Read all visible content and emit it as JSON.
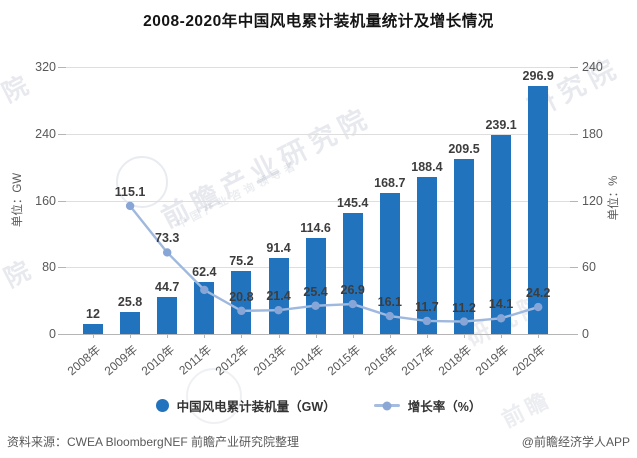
{
  "title": "2008-2020年中国风电累计装机量统计及增长情况",
  "chart_data": {
    "type": "bar",
    "categories": [
      "2008年",
      "2009年",
      "2010年",
      "2011年",
      "2012年",
      "2013年",
      "2014年",
      "2015年",
      "2016年",
      "2017年",
      "2018年",
      "2019年",
      "2020年"
    ],
    "series": [
      {
        "name": "中国风电累计装机量（GW）",
        "type": "bar",
        "axis": "left",
        "values": [
          12,
          25.8,
          44.7,
          62.4,
          75.2,
          91.4,
          114.6,
          145.4,
          168.7,
          188.4,
          209.5,
          239.1,
          296.9
        ],
        "labels": [
          "12",
          "25.8",
          "44.7",
          "62.4",
          "75.2",
          "91.4",
          "114.6",
          "145.4",
          "168.7",
          "188.4",
          "209.5",
          "239.1",
          "296.9"
        ]
      },
      {
        "name": "增长率（%）",
        "type": "line",
        "axis": "right",
        "values": [
          null,
          115.1,
          73.3,
          39.6,
          20.8,
          21.4,
          25.4,
          26.9,
          16.1,
          11.7,
          11.2,
          14.1,
          24.2
        ],
        "labels": [
          "",
          "115.1",
          "73.3",
          "",
          "20.8",
          "21.4",
          "25.4",
          "26.9",
          "16.1",
          "11.7",
          "11.2",
          "14.1",
          "24.2"
        ]
      }
    ],
    "left_axis": {
      "title": "单位：GW",
      "ticks": [
        0,
        80,
        160,
        240,
        320
      ],
      "ylim": [
        0,
        320
      ]
    },
    "right_axis": {
      "title": "单位：%",
      "ticks": [
        0,
        60,
        120,
        180,
        240
      ],
      "ylim": [
        0,
        240
      ]
    },
    "grid": true,
    "legend_position": "bottom"
  },
  "legend": {
    "bar_label": "中国风电累计装机量（GW）",
    "line_label": "增长率（%）"
  },
  "footer": {
    "source": "资料来源：CWEA BloombergNEF 前瞻产业研究院整理",
    "credit": "@前瞻经济学人APP"
  },
  "watermark": {
    "brand": "前瞻产业研究院",
    "tagline": "中国产业咨询领导者",
    "corner": "研究院",
    "partial": "院",
    "logo": "前瞻"
  },
  "colors": {
    "bar": "#2173bd",
    "line": "#9fb8de",
    "marker": "#87a5d6",
    "grid": "#dedede",
    "axis": "#b5b5b5",
    "data_label": "#3d3d3d",
    "tick_label": "#595959",
    "title": "#141414"
  }
}
